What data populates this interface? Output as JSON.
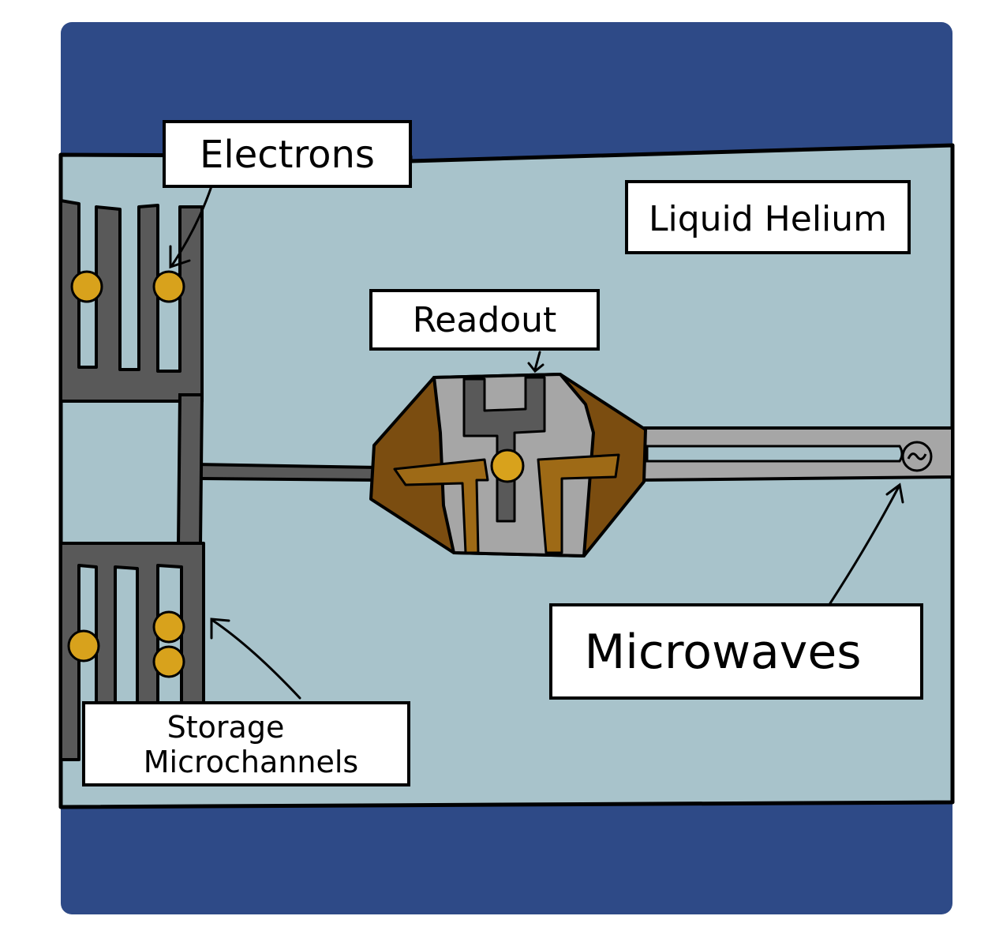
{
  "labels": {
    "electrons": "Electrons",
    "liquid_helium": "Liquid Helium",
    "readout": "Readout",
    "microwaves": "Microwaves",
    "storage_line1": "Storage",
    "storage_line2": "Microchannels"
  },
  "colors": {
    "substrate": "#2e4a87",
    "helium": "#a8c3cb",
    "channel": "#595959",
    "readout_gray": "#a6a6a6",
    "electrode_brown": "#7b4d10",
    "electrode_gold": "#9e6a16",
    "electron": "#d8a21c",
    "label_bg": "#ffffff",
    "stroke": "#000000"
  },
  "icons": {
    "microwave_source": "ac-source-icon"
  }
}
